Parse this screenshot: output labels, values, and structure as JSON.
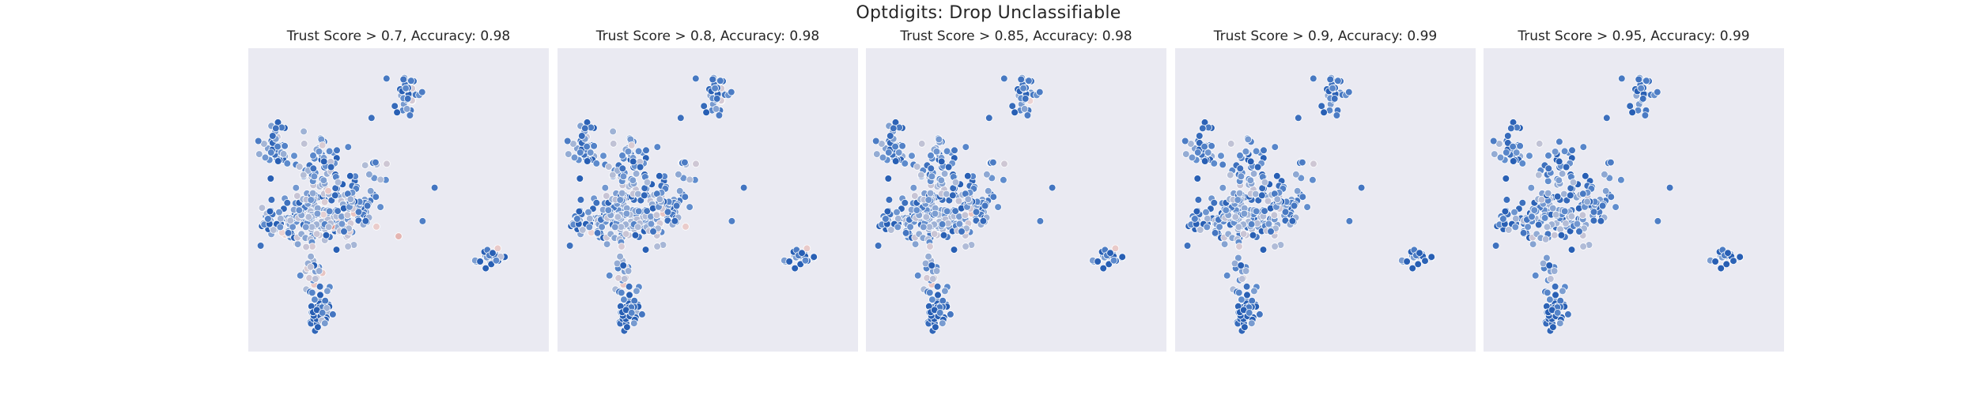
{
  "figure": {
    "title": "Optdigits: Drop Unclassifiable"
  },
  "style": {
    "axes_background": "#eaeaf2",
    "grid": false,
    "ticks": "hidden",
    "colormap": "vlag (blue = high trust score, red = low trust score)",
    "marker_edge": "#ffffff"
  },
  "chart_data": [
    {
      "type": "scatter",
      "title": "Trust Score > 0.7, Accuracy: 0.98",
      "threshold": 0.7,
      "accuracy": 0.98
    },
    {
      "type": "scatter",
      "title": "Trust Score > 0.8, Accuracy: 0.98",
      "threshold": 0.8,
      "accuracy": 0.98
    },
    {
      "type": "scatter",
      "title": "Trust Score > 0.85, Accuracy: 0.98",
      "threshold": 0.85,
      "accuracy": 0.98
    },
    {
      "type": "scatter",
      "title": "Trust Score > 0.9, Accuracy: 0.99",
      "threshold": 0.9,
      "accuracy": 0.99
    },
    {
      "type": "scatter",
      "title": "Trust Score > 0.95, Accuracy: 0.99",
      "threshold": 0.95,
      "accuracy": 0.99
    }
  ]
}
